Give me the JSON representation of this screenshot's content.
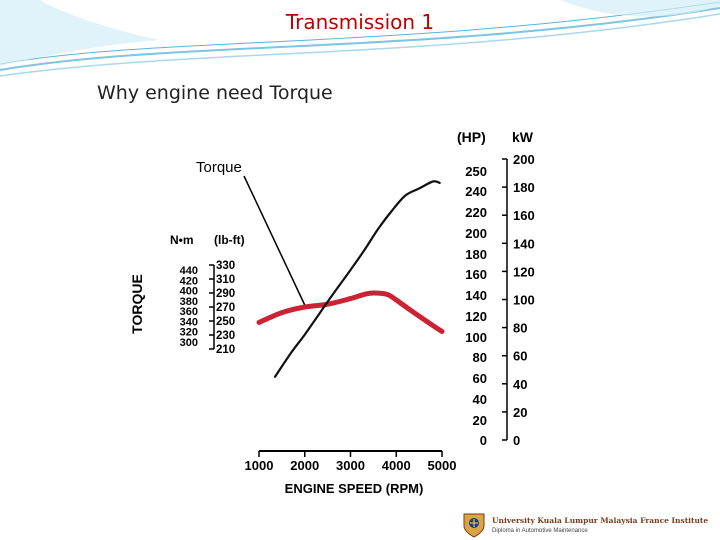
{
  "slide": {
    "title": "Transmission 1",
    "subtitle": "Why engine need Torque"
  },
  "footer": {
    "institute": "University Kuala Lumpur Malaysia France Institute",
    "diploma": "Diploma in Automotive Maintenance"
  },
  "colors": {
    "title": "#c00000",
    "torque_curve": "#cc2233",
    "power_curve": "#111111",
    "decor_blue": "#7fc4e0"
  },
  "chart_data": {
    "type": "line",
    "xlabel": "ENGINE SPEED (RPM)",
    "xlim": [
      1000,
      5000
    ],
    "x_ticks": [
      "1000",
      "2000",
      "3000",
      "4000",
      "5000"
    ],
    "torque_axis": {
      "title": "TORQUE",
      "nm_unit": "N•m",
      "lbft_unit": "(lb-ft)",
      "nm_ticks": [
        "440",
        "420",
        "400",
        "380",
        "360",
        "340",
        "320",
        "300"
      ],
      "lbft_ticks": [
        "330",
        "310",
        "290",
        "270",
        "250",
        "230",
        "210"
      ],
      "lbft_range": [
        210,
        330
      ]
    },
    "power_axis": {
      "hp_unit": "(HP)",
      "kw_unit": "kW",
      "hp_ticks": [
        "250",
        "240",
        "220",
        "200",
        "180",
        "160",
        "140",
        "120",
        "100",
        "80",
        "60",
        "40",
        "20",
        "0"
      ],
      "kw_ticks": [
        "200",
        "180",
        "160",
        "140",
        "120",
        "100",
        "80",
        "60",
        "40",
        "20",
        "0"
      ],
      "kw_range": [
        0,
        200
      ]
    },
    "series": [
      {
        "name": "Torque",
        "unit": "lb-ft",
        "x": [
          1000,
          1500,
          2000,
          2500,
          3000,
          3300,
          3500,
          3800,
          4000,
          4300,
          4700,
          5000
        ],
        "values": [
          248,
          262,
          270,
          274,
          282,
          288,
          290,
          288,
          280,
          266,
          248,
          235
        ]
      },
      {
        "unit": "kW",
        "x": [
          1350,
          1700,
          2000,
          2300,
          2600,
          3000,
          3300,
          3600,
          3900,
          4200,
          4500,
          4800,
          4950
        ],
        "values": [
          45,
          62,
          75,
          89,
          103,
          121,
          135,
          150,
          163,
          174,
          179,
          184,
          183
        ]
      }
    ],
    "annotations": [
      {
        "text": "Torque",
        "points_to": "Torque"
      }
    ],
    "grid": false
  }
}
